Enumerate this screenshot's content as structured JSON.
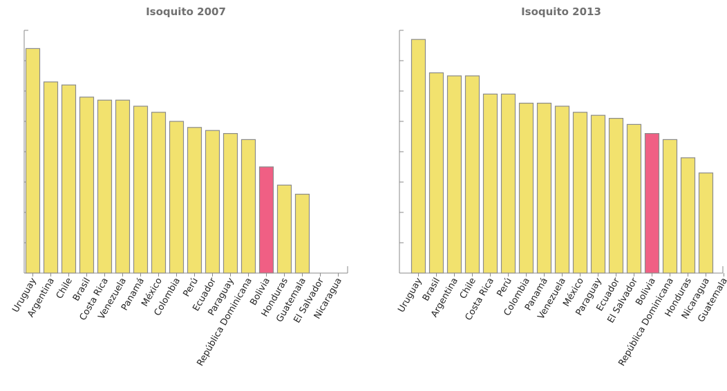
{
  "colors": {
    "bar": "#f2e26e",
    "highlight": "#f05f84",
    "axis": "#8a8a8a",
    "title": "#707070"
  },
  "chart_data": [
    {
      "type": "bar",
      "title": "Isoquito 2007",
      "xlabel": "",
      "ylabel": "",
      "ylim": [
        0,
        8
      ],
      "grid": false,
      "highlight_category": "Bolivia",
      "categories": [
        "Uruguay",
        "Argentina",
        "Chile",
        "Brasil",
        "Costa Rica",
        "Venezuela",
        "Panamá",
        "México",
        "Colombia",
        "Perú",
        "Ecuador",
        "Paraguay",
        "República Dominicana",
        "Bolivia",
        "Honduras",
        "Guatemala",
        "El Salvador",
        "Nicaragua"
      ],
      "values": [
        7.4,
        6.3,
        6.2,
        5.8,
        5.7,
        5.7,
        5.5,
        5.3,
        5.0,
        4.8,
        4.7,
        4.6,
        4.4,
        3.5,
        2.9,
        2.6,
        null,
        null
      ]
    },
    {
      "type": "bar",
      "title": "Isoquito 2013",
      "xlabel": "",
      "ylabel": "",
      "ylim": [
        0,
        8
      ],
      "grid": false,
      "highlight_category": "Bolivia",
      "categories": [
        "Uruguay",
        "Brasil",
        "Argentina",
        "Chile",
        "Costa Rica",
        "Perú",
        "Colombia",
        "Panamá",
        "Venezuela",
        "México",
        "Paraguay",
        "Ecuador",
        "El Salvador",
        "Bolivia",
        "República Dominicana",
        "Honduras",
        "Nicaragua",
        "Guatemala"
      ],
      "values": [
        7.7,
        6.6,
        6.5,
        6.5,
        5.9,
        5.9,
        5.6,
        5.6,
        5.5,
        5.3,
        5.2,
        5.1,
        4.9,
        4.6,
        4.4,
        3.8,
        3.3,
        null
      ]
    }
  ]
}
